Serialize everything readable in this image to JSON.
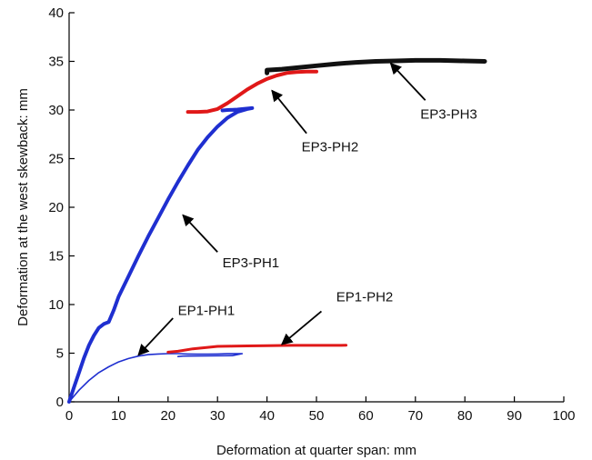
{
  "chart_data": {
    "type": "line",
    "xlabel": "Deformation at quarter span: mm",
    "ylabel": "Deformation at the west skewback: mm",
    "xlim": [
      0,
      100
    ],
    "ylim": [
      0,
      40
    ],
    "xticks": [
      0,
      10,
      20,
      30,
      40,
      50,
      60,
      70,
      80,
      90,
      100
    ],
    "yticks": [
      0,
      5,
      10,
      15,
      20,
      25,
      30,
      35,
      40
    ],
    "grid": false,
    "series": [
      {
        "name": "EP1-PH1",
        "color": "#1f2fd0",
        "width": 1.6,
        "points": [
          [
            0,
            0
          ],
          [
            2,
            1.2
          ],
          [
            4,
            2.2
          ],
          [
            6,
            3.0
          ],
          [
            8,
            3.6
          ],
          [
            10,
            4.1
          ],
          [
            12,
            4.45
          ],
          [
            14,
            4.7
          ],
          [
            16,
            4.85
          ],
          [
            18,
            4.92
          ],
          [
            20,
            4.95
          ],
          [
            22,
            4.95
          ],
          [
            24,
            4.92
          ],
          [
            26,
            4.9
          ],
          [
            28,
            4.9
          ],
          [
            30,
            4.92
          ],
          [
            32,
            4.94
          ],
          [
            34,
            4.95
          ],
          [
            35,
            4.95
          ],
          [
            33,
            4.75
          ],
          [
            28,
            4.72
          ],
          [
            23,
            4.7
          ],
          [
            22,
            4.65
          ]
        ]
      },
      {
        "name": "EP1-PH2",
        "color": "#e01818",
        "width": 3,
        "points": [
          [
            20,
            5.1
          ],
          [
            22,
            5.2
          ],
          [
            25,
            5.45
          ],
          [
            28,
            5.6
          ],
          [
            30,
            5.7
          ],
          [
            33,
            5.72
          ],
          [
            36,
            5.75
          ],
          [
            40,
            5.78
          ],
          [
            45,
            5.8
          ],
          [
            50,
            5.8
          ],
          [
            55,
            5.8
          ],
          [
            56,
            5.82
          ]
        ]
      },
      {
        "name": "EP3-PH1",
        "color": "#1f2fd0",
        "width": 4,
        "points": [
          [
            0,
            0
          ],
          [
            1,
            1.5
          ],
          [
            2,
            3.0
          ],
          [
            3,
            4.5
          ],
          [
            4,
            5.8
          ],
          [
            5,
            6.8
          ],
          [
            6,
            7.6
          ],
          [
            7,
            8.0
          ],
          [
            8,
            8.2
          ],
          [
            9,
            9.4
          ],
          [
            10,
            10.8
          ],
          [
            12,
            12.9
          ],
          [
            14,
            15.0
          ],
          [
            16,
            17.0
          ],
          [
            18,
            18.9
          ],
          [
            20,
            20.8
          ],
          [
            22,
            22.6
          ],
          [
            24,
            24.3
          ],
          [
            26,
            25.9
          ],
          [
            28,
            27.2
          ],
          [
            30,
            28.3
          ],
          [
            32,
            29.2
          ],
          [
            34,
            29.8
          ],
          [
            36,
            30.1
          ],
          [
            37,
            30.2
          ],
          [
            34,
            30.05
          ],
          [
            32,
            30.0
          ],
          [
            31,
            29.95
          ]
        ]
      },
      {
        "name": "EP3-PH2",
        "color": "#e01818",
        "width": 4,
        "points": [
          [
            24,
            29.8
          ],
          [
            26,
            29.8
          ],
          [
            28,
            29.85
          ],
          [
            30,
            30.1
          ],
          [
            32,
            30.7
          ],
          [
            34,
            31.4
          ],
          [
            36,
            32.1
          ],
          [
            38,
            32.7
          ],
          [
            40,
            33.2
          ],
          [
            42,
            33.55
          ],
          [
            44,
            33.8
          ],
          [
            46,
            33.9
          ],
          [
            48,
            33.95
          ],
          [
            50,
            33.95
          ]
        ]
      },
      {
        "name": "EP3-PH3",
        "color": "#111111",
        "width": 5,
        "points": [
          [
            40,
            33.8
          ],
          [
            40,
            34.1
          ],
          [
            43,
            34.2
          ],
          [
            46,
            34.35
          ],
          [
            50,
            34.55
          ],
          [
            54,
            34.75
          ],
          [
            58,
            34.9
          ],
          [
            62,
            35.0
          ],
          [
            66,
            35.05
          ],
          [
            70,
            35.1
          ],
          [
            75,
            35.1
          ],
          [
            80,
            35.05
          ],
          [
            84,
            35.0
          ]
        ]
      }
    ],
    "annotations": [
      {
        "text": "EP1-PH1",
        "head": [
          14,
          4.8
        ],
        "tail": [
          21,
          8.6
        ],
        "label_pos": [
          22,
          9.4
        ],
        "anchor": "start"
      },
      {
        "text": "EP1-PH2",
        "head": [
          43,
          5.9
        ],
        "tail": [
          51,
          9.3
        ],
        "label_pos": [
          54,
          10.8
        ],
        "anchor": "start"
      },
      {
        "text": "EP3-PH1",
        "head": [
          23,
          19.2
        ],
        "tail": [
          30,
          15.4
        ],
        "label_pos": [
          31,
          14.3
        ],
        "anchor": "start"
      },
      {
        "text": "EP3-PH2",
        "head": [
          41,
          32.0
        ],
        "tail": [
          48,
          27.6
        ],
        "label_pos": [
          47,
          26.2
        ],
        "anchor": "start"
      },
      {
        "text": "EP3-PH3",
        "head": [
          65,
          34.8
        ],
        "tail": [
          72,
          31.0
        ],
        "label_pos": [
          71,
          29.6
        ],
        "anchor": "start"
      }
    ]
  }
}
